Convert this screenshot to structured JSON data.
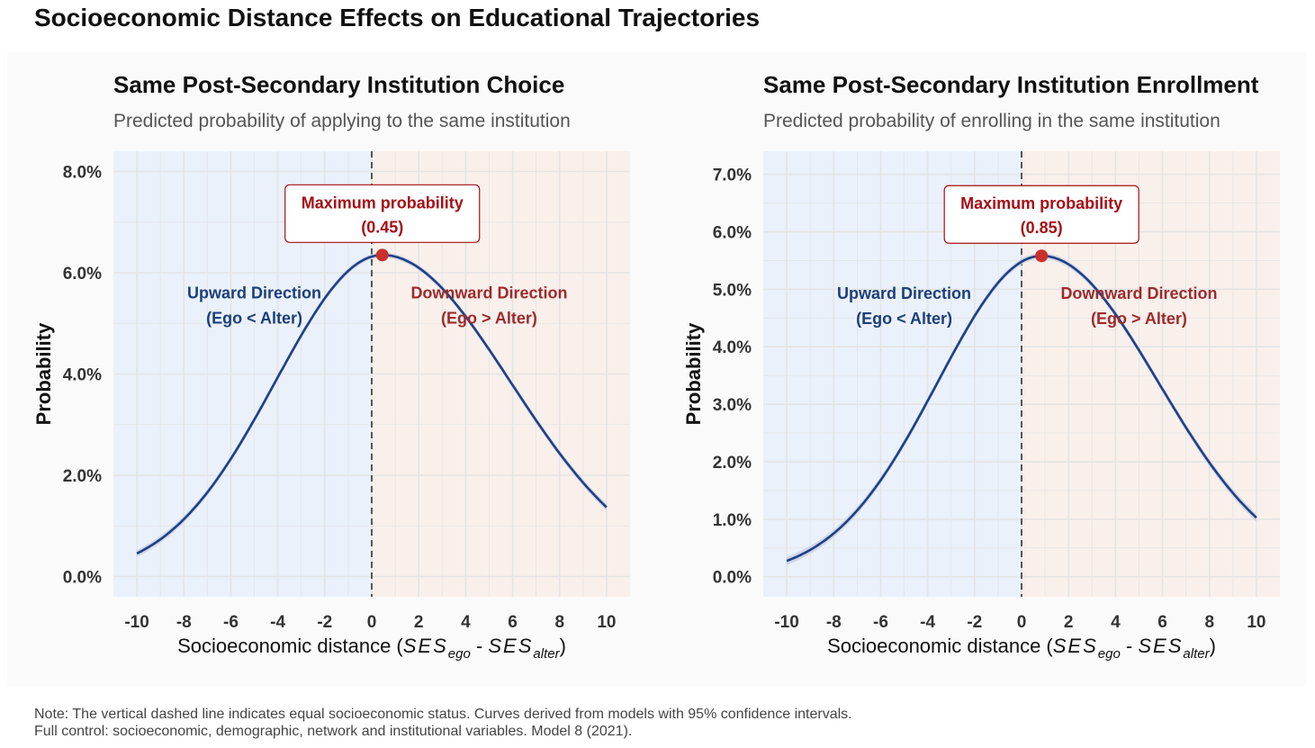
{
  "title": "Socioeconomic Distance Effects on Educational Trajectories",
  "footer": {
    "line1": "Note: The vertical dashed line indicates equal socioeconomic status. Curves derived from models with 95% confidence intervals.",
    "line2": "Full control: socioeconomic, demographic, network and institutional variables. Model 8 (2021)."
  },
  "colors": {
    "upward_region": "#eaf1fb",
    "downward_region": "#f9f0ec",
    "curve": "#1f3f86",
    "ribbon": "#c9d0e3",
    "max_point": "#c9302c",
    "max_label": "#a50f15",
    "upward_text": "#1c3f7a",
    "downward_text": "#9e2a2b",
    "grid": "#e4e4e4"
  },
  "chart_data": [
    {
      "type": "line",
      "title": "Same Post-Secondary Institution Choice",
      "subtitle": "Predicted probability of applying to the same institution",
      "ylabel": "Probability",
      "xlabel_prefix": "Socioeconomic distance (",
      "xlabel_suffix": ")",
      "xlabel_math": {
        "var": "SES",
        "sub1": "ego",
        "sep": " - ",
        "sub2": "alter"
      },
      "xlim": [
        -11,
        11
      ],
      "ylim": [
        -0.4,
        8.4
      ],
      "x_ticks": [
        -10,
        -8,
        -6,
        -4,
        -2,
        0,
        2,
        4,
        6,
        8,
        10
      ],
      "x_tick_labels": [
        "-10",
        "-8",
        "-6",
        "-4",
        "-2",
        "0",
        "2",
        "4",
        "6",
        "8",
        "10"
      ],
      "y_ticks": [
        0,
        2,
        4,
        6,
        8
      ],
      "y_tick_labels": [
        "0.0%",
        "2.0%",
        "4.0%",
        "6.0%",
        "8.0%"
      ],
      "peak": {
        "x": 0.45,
        "y": 6.35,
        "label_line1": "Maximum probability",
        "label_line2": "(0.45)"
      },
      "curve": {
        "left_sigma": 4.55,
        "right_sigma": 5.45,
        "start": [
          -10,
          1.0
        ],
        "end": [
          10,
          1.4
        ]
      },
      "upward_label": [
        "Upward Direction",
        "(Ego < Alter)"
      ],
      "downward_label": [
        "Downward Direction",
        "(Ego > Alter)"
      ]
    },
    {
      "type": "line",
      "title": "Same Post-Secondary Institution Enrollment",
      "subtitle": "Predicted probability of enrolling in the same institution",
      "ylabel": "Probability",
      "xlabel_prefix": "Socioeconomic distance (",
      "xlabel_suffix": ")",
      "xlabel_math": {
        "var": "SES",
        "sub1": "ego",
        "sep": " - ",
        "sub2": "alter"
      },
      "xlim": [
        -11,
        11
      ],
      "ylim": [
        -0.35,
        7.4
      ],
      "x_ticks": [
        -10,
        -8,
        -6,
        -4,
        -2,
        0,
        2,
        4,
        6,
        8,
        10
      ],
      "x_tick_labels": [
        "-10",
        "-8",
        "-6",
        "-4",
        "-2",
        "0",
        "2",
        "4",
        "6",
        "8",
        "10"
      ],
      "y_ticks": [
        0,
        1,
        2,
        3,
        4,
        5,
        6,
        7
      ],
      "y_tick_labels": [
        "0.0%",
        "1.0%",
        "2.0%",
        "3.0%",
        "4.0%",
        "5.0%",
        "6.0%",
        "7.0%"
      ],
      "peak": {
        "x": 0.85,
        "y": 5.58,
        "label_line1": "Maximum probability",
        "label_line2": "(0.85)"
      },
      "curve": {
        "left_sigma": 4.42,
        "right_sigma": 4.97,
        "start": [
          -10,
          0.58
        ],
        "end": [
          10,
          1.12
        ]
      },
      "upward_label": [
        "Upward Direction",
        "(Ego < Alter)"
      ],
      "downward_label": [
        "Downward Direction",
        "(Ego > Alter)"
      ]
    }
  ]
}
